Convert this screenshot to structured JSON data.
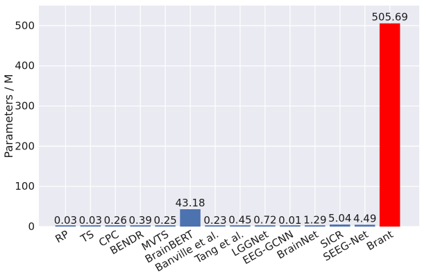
{
  "chart_data": {
    "type": "bar",
    "title": "",
    "xlabel": "",
    "ylabel": "Parameters / M",
    "ylim": [
      0,
      550
    ],
    "yticks": [
      0,
      100,
      200,
      300,
      400,
      500
    ],
    "ytick_labels": [
      "0",
      "100",
      "200",
      "300",
      "400",
      "500"
    ],
    "grid": true,
    "categories": [
      "RP",
      "TS",
      "CPC",
      "BENDR",
      "MVTS",
      "BrainBERT",
      "Banville et al.",
      "Tang et al.",
      "LGGNet",
      "EEG-GCNN",
      "BrainNet",
      "SICR",
      "SEEG-Net",
      "Brant"
    ],
    "values": [
      0.03,
      0.03,
      0.26,
      0.39,
      0.25,
      43.18,
      0.23,
      0.45,
      0.72,
      0.01,
      1.29,
      5.04,
      4.49,
      505.69
    ],
    "value_labels": [
      "0.03",
      "0.03",
      "0.26",
      "0.39",
      "0.25",
      "43.18",
      "0.23",
      "0.45",
      "0.72",
      "0.01",
      "1.29",
      "5.04",
      "4.49",
      "505.69"
    ],
    "bar_colors": [
      "#4c72b0",
      "#4c72b0",
      "#4c72b0",
      "#4c72b0",
      "#4c72b0",
      "#4c72b0",
      "#4c72b0",
      "#4c72b0",
      "#4c72b0",
      "#4c72b0",
      "#4c72b0",
      "#4c72b0",
      "#4c72b0",
      "#ff0000"
    ],
    "background_color": "#eaeaf2"
  }
}
